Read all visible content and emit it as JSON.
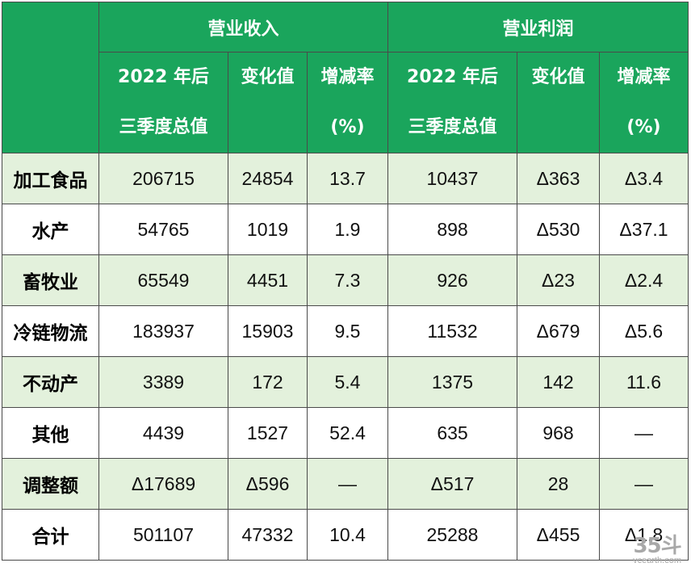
{
  "header": {
    "group_revenue": "营业收入",
    "group_profit": "营业利润",
    "col_total_line1": "2022 年后",
    "col_total_line2": "三季度总值",
    "col_change": "变化值",
    "col_rate_line1": "增减率",
    "col_rate_line2": "(%)"
  },
  "rows": [
    {
      "label": "加工食品",
      "rev_total": "206715",
      "rev_change": "24854",
      "rev_rate": "13.7",
      "pro_total": "10437",
      "pro_change": "Δ363",
      "pro_rate": "Δ3.4"
    },
    {
      "label": "水产",
      "rev_total": "54765",
      "rev_change": "1019",
      "rev_rate": "1.9",
      "pro_total": "898",
      "pro_change": "Δ530",
      "pro_rate": "Δ37.1"
    },
    {
      "label": "畜牧业",
      "rev_total": "65549",
      "rev_change": "4451",
      "rev_rate": "7.3",
      "pro_total": "926",
      "pro_change": "Δ23",
      "pro_rate": "Δ2.4"
    },
    {
      "label": "冷链物流",
      "rev_total": "183937",
      "rev_change": "15903",
      "rev_rate": "9.5",
      "pro_total": "11532",
      "pro_change": "Δ679",
      "pro_rate": "Δ5.6"
    },
    {
      "label": "不动产",
      "rev_total": "3389",
      "rev_change": "172",
      "rev_rate": "5.4",
      "pro_total": "1375",
      "pro_change": "142",
      "pro_rate": "11.6"
    },
    {
      "label": "其他",
      "rev_total": "4439",
      "rev_change": "1527",
      "rev_rate": "52.4",
      "pro_total": "635",
      "pro_change": "968",
      "pro_rate": "—"
    },
    {
      "label": "调整额",
      "rev_total": "Δ17689",
      "rev_change": "Δ596",
      "rev_rate": "—",
      "pro_total": "Δ517",
      "pro_change": "28",
      "pro_rate": "—"
    },
    {
      "label": "合计",
      "rev_total": "501107",
      "rev_change": "47332",
      "rev_rate": "10.4",
      "pro_total": "25288",
      "pro_change": "Δ455",
      "pro_rate": "Δ1.8"
    }
  ],
  "watermark": {
    "logo": "35斗",
    "url": "vcearth.com"
  },
  "colors": {
    "header_bg": "#1aa55c",
    "row_shade": "#e3f1dc",
    "border": "#4a4a4a"
  }
}
